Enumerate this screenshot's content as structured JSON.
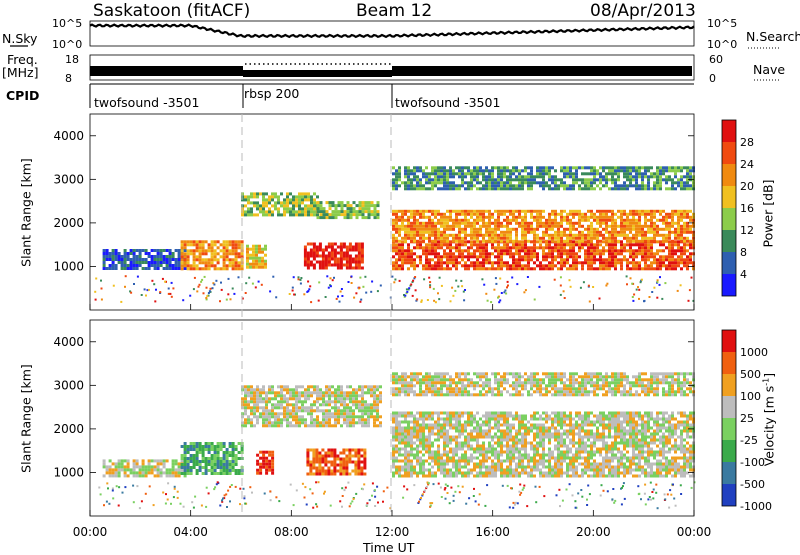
{
  "header": {
    "station": "Saskatoon (fitACF)",
    "beam": "Beam 12",
    "date": "08/Apr/2013"
  },
  "strip_labels": {
    "nsky": "N.Sky",
    "nsky_ticks": [
      "10^5",
      "10^0"
    ],
    "nsearch": "N.Search",
    "nsearch_ticks": [
      "10^5",
      "10^0"
    ],
    "freq": "Freq.",
    "freq_unit": "[MHz]",
    "freq_ticks": [
      "18",
      "8"
    ],
    "nave": "Nave",
    "nave_ticks": [
      "60",
      "0"
    ],
    "cpid": "CPID"
  },
  "cpid_segments": [
    {
      "label": "twofsound -3501",
      "start": "00:00",
      "end": "06:00"
    },
    {
      "label": "rbsp 200",
      "start": "06:00",
      "end": "12:00"
    },
    {
      "label": "twofsound -3501",
      "start": "12:00",
      "end": "24:00"
    }
  ],
  "axes": {
    "ylabel": "Slant Range [km]",
    "yticks": [
      "1000",
      "2000",
      "3000",
      "4000"
    ],
    "xlabel": "Time UT",
    "xticks": [
      "00:00",
      "04:00",
      "08:00",
      "12:00",
      "16:00",
      "20:00",
      "00:00"
    ]
  },
  "power_scale": {
    "label": "Power [dB]",
    "ticks": [
      "4",
      "8",
      "12",
      "16",
      "20",
      "24",
      "28"
    ],
    "colors": [
      "#1a1aff",
      "#2e5fb0",
      "#3a8a5a",
      "#8ccc4a",
      "#f0c020",
      "#f08a10",
      "#f04a10",
      "#e01010"
    ]
  },
  "velocity_scale": {
    "label": "Velocity [m s",
    "label_sup": "-1",
    "label_end": "]",
    "ticks": [
      "1000",
      "500",
      "100",
      "25",
      "-25",
      "-100",
      "-500",
      "-1000"
    ],
    "colors": [
      "#2040c0",
      "#3a7aa0",
      "#3aaa4a",
      "#7ad060",
      "#bdbdbd",
      "#f0a020",
      "#f06010",
      "#e01010"
    ]
  },
  "chart_data": {
    "type": "heatmap",
    "x_range_hours": [
      0,
      24
    ],
    "y_range_km": [
      0,
      4500
    ],
    "gate_max_km": 3500,
    "power_bands": [
      {
        "t0": 0.5,
        "t1": 3.8,
        "r0": 950,
        "r1": 1400,
        "level": 1
      },
      {
        "t0": 3.6,
        "t1": 6.0,
        "r0": 950,
        "r1": 1600,
        "level": 5
      },
      {
        "t0": 6.0,
        "t1": 9.0,
        "r0": 2200,
        "r1": 2700,
        "level": 3
      },
      {
        "t0": 9.0,
        "t1": 11.5,
        "r0": 2100,
        "r1": 2500,
        "level": 3
      },
      {
        "t0": 6.2,
        "t1": 7.0,
        "r0": 1000,
        "r1": 1500,
        "level": 4
      },
      {
        "t0": 8.5,
        "t1": 10.8,
        "r0": 950,
        "r1": 1550,
        "level": 7
      },
      {
        "t0": 12.0,
        "t1": 24.0,
        "r0": 950,
        "r1": 1600,
        "level": 6
      },
      {
        "t0": 12.0,
        "t1": 24.0,
        "r0": 1600,
        "r1": 2300,
        "level": 5
      },
      {
        "t0": 12.0,
        "t1": 24.0,
        "r0": 2800,
        "r1": 3300,
        "level": 2
      }
    ],
    "velocity_bands": [
      {
        "t0": 0.5,
        "t1": 3.8,
        "r0": 900,
        "r1": 1300,
        "level": 4
      },
      {
        "t0": 3.6,
        "t1": 6.0,
        "r0": 950,
        "r1": 1700,
        "level": 2
      },
      {
        "t0": 6.0,
        "t1": 11.5,
        "r0": 2100,
        "r1": 3000,
        "level": 4
      },
      {
        "t0": 6.6,
        "t1": 7.2,
        "r0": 1000,
        "r1": 1500,
        "level": 7
      },
      {
        "t0": 8.6,
        "t1": 10.9,
        "r0": 950,
        "r1": 1550,
        "level": 6
      },
      {
        "t0": 12.0,
        "t1": 24.0,
        "r0": 900,
        "r1": 2400,
        "level": 4
      },
      {
        "t0": 12.0,
        "t1": 24.0,
        "r0": 2800,
        "r1": 3300,
        "level": 4
      }
    ]
  }
}
